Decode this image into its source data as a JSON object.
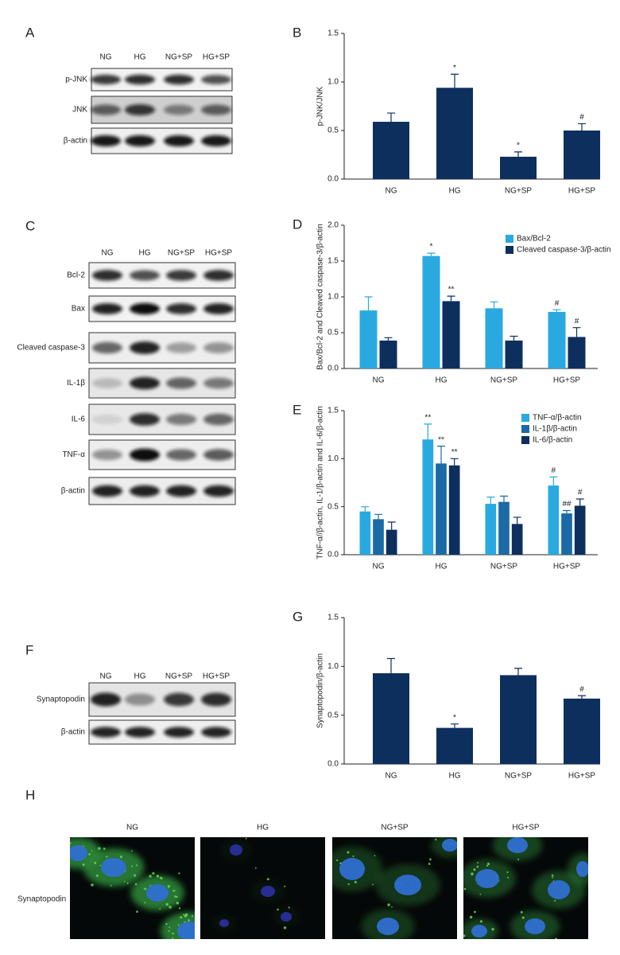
{
  "blots": [
    {
      "panel": "A",
      "columns": [
        "NG",
        "HG",
        "NG+SP",
        "HG+SP"
      ],
      "rows": [
        "p-JNK",
        "JNK",
        "β-actin"
      ]
    },
    {
      "panel": "C",
      "columns": [
        "NG",
        "HG",
        "NG+SP",
        "HG+SP"
      ],
      "rows": [
        "Bcl-2",
        "Bax",
        "Cleaved caspase-3",
        "IL-1β",
        "IL-6",
        "TNF-α",
        "β-actin"
      ]
    },
    {
      "panel": "F",
      "columns": [
        "NG",
        "HG",
        "NG+SP",
        "HG+SP"
      ],
      "rows": [
        "Synaptopodin",
        "β-actin"
      ]
    }
  ],
  "chart_data": [
    {
      "type": "bar",
      "panel": "B",
      "y_label": "p-JNK/JNK",
      "categories": [
        "NG",
        "HG",
        "NG+SP",
        "HG+SP"
      ],
      "values": [
        0.59,
        0.94,
        0.23,
        0.5
      ],
      "errors": [
        0.09,
        0.14,
        0.05,
        0.07
      ],
      "annotations": [
        null,
        "*",
        "*",
        "#"
      ],
      "color": "#0d2f5e",
      "ylim": [
        0,
        1.5
      ],
      "yticks": [
        {
          "value": 0,
          "label": "0.0"
        },
        0.5,
        {
          "value": 1,
          "label": "1.0"
        },
        1.5
      ]
    },
    {
      "type": "bar",
      "panel": "D",
      "y_label": "Bax/Bcl-2 and Cleaved caspase-3/β-actin",
      "categories": [
        "NG",
        "HG",
        "NG+SP",
        "HG+SP"
      ],
      "series": [
        {
          "name": "Bax/Bcl-2",
          "color": "#29a9e0",
          "values": [
            0.81,
            1.57,
            0.84,
            0.79
          ],
          "errors": [
            0.19,
            0.04,
            0.09,
            0.03
          ],
          "annotations": [
            null,
            "*",
            null,
            "#"
          ]
        },
        {
          "name": "Cleaved caspase-3/β-actin",
          "color": "#0d2f5e",
          "values": [
            0.39,
            0.94,
            0.39,
            0.44
          ],
          "errors": [
            0.04,
            0.07,
            0.06,
            0.13
          ],
          "annotations": [
            null,
            "**",
            null,
            "#"
          ]
        }
      ],
      "ylim": [
        0,
        2
      ],
      "yticks": [
        {
          "value": 0,
          "label": "0.0"
        },
        0.5,
        {
          "value": 1,
          "label": "1.0"
        },
        1.5,
        {
          "value": 2,
          "label": "2.0"
        }
      ]
    },
    {
      "type": "bar",
      "panel": "E",
      "y_label": "TNF-α//β-actin, IL-1/β-actin and IL-6/β-actin",
      "categories": [
        "NG",
        "HG",
        "NG+SP",
        "HG+SP"
      ],
      "series": [
        {
          "name": "TNF-α/β-actin",
          "color": "#29a9e0",
          "values": [
            0.45,
            1.2,
            0.53,
            0.72
          ],
          "errors": [
            0.05,
            0.16,
            0.07,
            0.09
          ],
          "annotations": [
            null,
            "**",
            null,
            "#"
          ]
        },
        {
          "name": "IL-1β/β-actin",
          "color": "#1b6aa6",
          "values": [
            0.37,
            0.95,
            0.55,
            0.43
          ],
          "errors": [
            0.05,
            0.18,
            0.06,
            0.03
          ],
          "annotations": [
            null,
            "**",
            null,
            "##"
          ]
        },
        {
          "name": "IL-6/β-actin",
          "color": "#0d2f5e",
          "values": [
            0.26,
            0.93,
            0.32,
            0.51
          ],
          "errors": [
            0.08,
            0.07,
            0.07,
            0.07
          ],
          "annotations": [
            null,
            "**",
            null,
            "#"
          ]
        }
      ],
      "ylim": [
        0,
        1.5
      ],
      "yticks": [
        {
          "value": 0,
          "label": "0.0"
        },
        0.5,
        {
          "value": 1,
          "label": "1.0"
        },
        1.5
      ]
    },
    {
      "type": "bar",
      "panel": "G",
      "y_label": "Synaptopodin/β-actin",
      "categories": [
        "NG",
        "HG",
        "NG+SP",
        "HG+SP"
      ],
      "values": [
        0.93,
        0.37,
        0.91,
        0.67
      ],
      "errors": [
        0.15,
        0.04,
        0.07,
        0.03
      ],
      "annotations": [
        null,
        "*",
        null,
        "#"
      ],
      "color": "#0d2f5e",
      "ylim": [
        0,
        1.5
      ],
      "yticks": [
        {
          "value": 0,
          "label": "0.0"
        },
        0.5,
        {
          "value": 1,
          "label": "1.0"
        },
        1.5
      ]
    }
  ],
  "microscopy": {
    "panel": "H",
    "columns": [
      "NG",
      "HG",
      "NG+SP",
      "HG+SP"
    ],
    "row_label": "Synaptopodin"
  }
}
